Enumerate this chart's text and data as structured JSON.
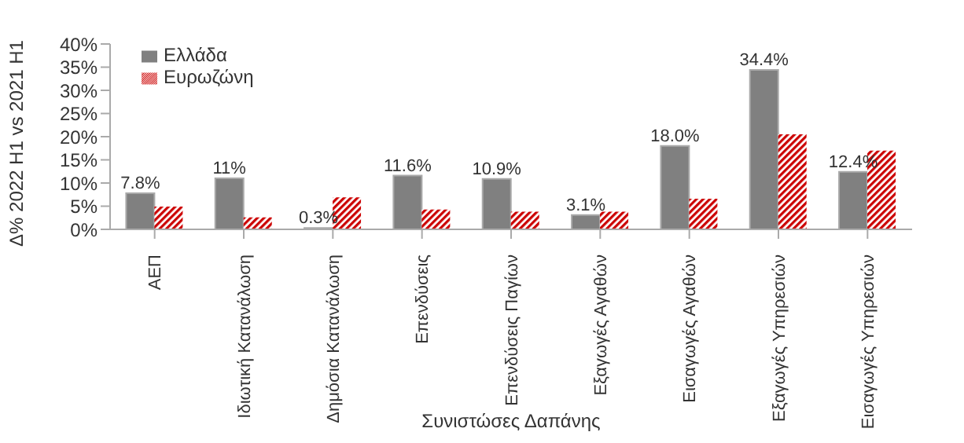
{
  "chart_data": {
    "type": "bar",
    "xlabel": "Συνιστώσες Δαπάνης",
    "ylabel": "Δ% 2022 H1 vs 2021 H1",
    "categories": [
      "ΑΕΠ",
      "Ιδιωτική Κατανάλωση",
      "Δημόσια Κατανάλωση",
      "Επενδύσεις",
      "Επενδύσεις Παγίων",
      "Εξαγωγές Αγαθών",
      "Εισαγωγές Αγαθών",
      "Εξαγωγές Υπηρεσιών",
      "Εισαγωγές Υπηρεσιών"
    ],
    "series": [
      {
        "name": "Ελλάδα",
        "color": "#808080",
        "values": [
          7.8,
          11,
          0.3,
          11.6,
          10.9,
          3.1,
          18.0,
          34.4,
          12.4
        ],
        "value_labels": [
          "7.8%",
          "11%",
          "0.3%",
          "11.6%",
          "10.9%",
          "3.1%",
          "18.0%",
          "34.4%",
          "12.4%"
        ]
      },
      {
        "name": "Ευρωζώνη",
        "color": "#cc0000",
        "values": [
          4.9,
          2.6,
          6.9,
          4.3,
          3.8,
          3.8,
          6.6,
          20.5,
          17.0
        ]
      }
    ],
    "ylim": [
      0,
      40
    ],
    "yticks": [
      {
        "value": 0,
        "label": "0%"
      },
      {
        "value": 5,
        "label": "5%"
      },
      {
        "value": 10,
        "label": "10%"
      },
      {
        "value": 15,
        "label": "15%"
      },
      {
        "value": 20,
        "label": "20%"
      },
      {
        "value": 25,
        "label": "25%"
      },
      {
        "value": 30,
        "label": "30%"
      },
      {
        "value": 35,
        "label": "35%"
      },
      {
        "value": 40,
        "label": "40%"
      }
    ],
    "grid": false,
    "legend": "top left"
  }
}
